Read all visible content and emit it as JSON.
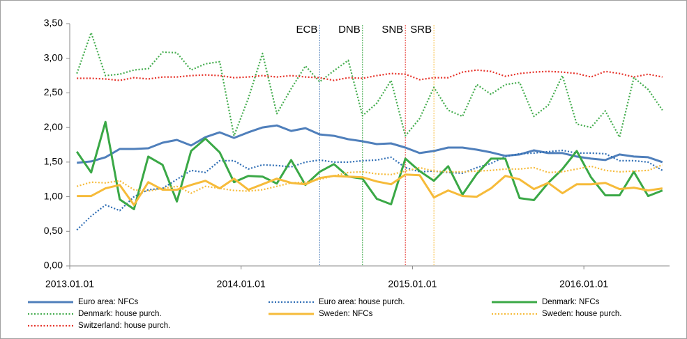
{
  "chart_data": {
    "type": "line",
    "x": [
      "2013.01.01",
      "2013.02.01",
      "2013.03.01",
      "2013.04.01",
      "2013.05.01",
      "2013.06.01",
      "2013.07.01",
      "2013.08.01",
      "2013.09.01",
      "2013.10.01",
      "2013.11.01",
      "2013.12.01",
      "2014.01.01",
      "2014.02.01",
      "2014.03.01",
      "2014.04.01",
      "2014.05.01",
      "2014.06.01",
      "2014.07.01",
      "2014.08.01",
      "2014.09.01",
      "2014.10.01",
      "2014.11.01",
      "2014.12.01",
      "2015.01.01",
      "2015.02.01",
      "2015.03.01",
      "2015.04.01",
      "2015.05.01",
      "2015.06.01",
      "2015.07.01",
      "2015.08.01",
      "2015.09.01",
      "2015.10.01",
      "2015.11.01",
      "2015.12.01",
      "2016.01.01",
      "2016.02.01",
      "2016.03.01",
      "2016.04.01",
      "2016.05.01",
      "2016.06.01"
    ],
    "xticks": [
      "2013.01.01",
      "2014.01.01",
      "2015.01.01",
      "2016.01.01"
    ],
    "ylim": [
      0,
      3.5
    ],
    "yticks": [
      {
        "value": 0,
        "label": "0,00"
      },
      {
        "value": 0.5,
        "label": "0,50"
      },
      {
        "value": 1,
        "label": "1,00"
      },
      {
        "value": 1.5,
        "label": "1,50"
      },
      {
        "value": 2,
        "label": "2,00"
      },
      {
        "value": 2.5,
        "label": "2,50"
      },
      {
        "value": 3,
        "label": "3,00"
      },
      {
        "value": 3.5,
        "label": "3,50"
      }
    ],
    "series": [
      {
        "name": "Euro area: NFCs",
        "color": "#4f7fbb",
        "style": "solid",
        "values": [
          1.49,
          1.51,
          1.57,
          1.69,
          1.69,
          1.7,
          1.78,
          1.82,
          1.74,
          1.86,
          1.93,
          1.85,
          1.93,
          2.0,
          2.03,
          1.95,
          1.99,
          1.9,
          1.88,
          1.83,
          1.8,
          1.76,
          1.77,
          1.71,
          1.63,
          1.66,
          1.71,
          1.71,
          1.68,
          1.64,
          1.59,
          1.61,
          1.67,
          1.63,
          1.63,
          1.58,
          1.55,
          1.53,
          1.61,
          1.58,
          1.57,
          1.5
        ]
      },
      {
        "name": "Euro area: house purch.",
        "color": "#2e6db4",
        "style": "dotted",
        "values": [
          0.52,
          0.72,
          0.88,
          0.8,
          1.0,
          1.1,
          1.12,
          1.25,
          1.38,
          1.35,
          1.52,
          1.52,
          1.4,
          1.46,
          1.45,
          1.43,
          1.5,
          1.53,
          1.5,
          1.5,
          1.52,
          1.53,
          1.57,
          1.42,
          1.36,
          1.37,
          1.35,
          1.34,
          1.42,
          1.48,
          1.58,
          1.62,
          1.63,
          1.65,
          1.67,
          1.63,
          1.63,
          1.62,
          1.52,
          1.52,
          1.5,
          1.38
        ]
      },
      {
        "name": "Denmark: NFCs",
        "color": "#3aa846",
        "style": "solid",
        "values": [
          1.65,
          1.35,
          2.08,
          0.96,
          0.82,
          1.58,
          1.46,
          0.93,
          1.66,
          1.84,
          1.64,
          1.21,
          1.3,
          1.29,
          1.19,
          1.53,
          1.17,
          1.36,
          1.47,
          1.29,
          1.26,
          0.97,
          0.89,
          1.55,
          1.37,
          1.23,
          1.44,
          1.03,
          1.33,
          1.55,
          1.55,
          0.98,
          0.95,
          1.2,
          1.4,
          1.66,
          1.28,
          1.02,
          1.02,
          1.36,
          1.01,
          1.09
        ]
      },
      {
        "name": "Denmark: house purch.",
        "color": "#45ad4f",
        "style": "dotted",
        "values": [
          2.78,
          3.37,
          2.75,
          2.77,
          2.83,
          2.85,
          3.09,
          3.08,
          2.83,
          2.92,
          2.95,
          1.88,
          2.42,
          3.07,
          2.2,
          2.56,
          2.89,
          2.66,
          2.82,
          2.97,
          2.17,
          2.35,
          2.68,
          1.88,
          2.13,
          2.58,
          2.25,
          2.16,
          2.62,
          2.48,
          2.62,
          2.65,
          2.16,
          2.32,
          2.75,
          2.05,
          2.0,
          2.24,
          1.86,
          2.72,
          2.55,
          2.25
        ]
      },
      {
        "name": "Sweden: NFCs",
        "color": "#f6bb3a",
        "style": "solid",
        "values": [
          1.01,
          1.01,
          1.12,
          1.17,
          0.88,
          1.21,
          1.1,
          1.1,
          1.17,
          1.23,
          1.12,
          1.26,
          1.1,
          1.18,
          1.26,
          1.2,
          1.18,
          1.27,
          1.3,
          1.29,
          1.28,
          1.22,
          1.18,
          1.32,
          1.31,
          0.99,
          1.09,
          1.01,
          1.0,
          1.12,
          1.3,
          1.25,
          1.11,
          1.2,
          1.05,
          1.18,
          1.18,
          1.2,
          1.11,
          1.13,
          1.09,
          1.12
        ]
      },
      {
        "name": "Sweden: house purch.",
        "color": "#f6bb3a",
        "style": "dotted",
        "values": [
          1.15,
          1.21,
          1.2,
          1.23,
          1.1,
          1.08,
          1.12,
          1.15,
          1.05,
          1.15,
          1.12,
          1.09,
          1.08,
          1.1,
          1.15,
          1.2,
          1.21,
          1.25,
          1.3,
          1.35,
          1.36,
          1.33,
          1.32,
          1.37,
          1.42,
          1.37,
          1.36,
          1.36,
          1.37,
          1.38,
          1.4,
          1.4,
          1.42,
          1.35,
          1.36,
          1.4,
          1.44,
          1.38,
          1.36,
          1.37,
          1.38,
          1.46
        ]
      },
      {
        "name": "Switzerland: house purch.",
        "color": "#e6332a",
        "style": "dotted",
        "values": [
          2.71,
          2.71,
          2.7,
          2.68,
          2.72,
          2.7,
          2.73,
          2.73,
          2.75,
          2.76,
          2.75,
          2.72,
          2.73,
          2.75,
          2.73,
          2.75,
          2.73,
          2.72,
          2.68,
          2.72,
          2.71,
          2.75,
          2.78,
          2.77,
          2.69,
          2.72,
          2.72,
          2.8,
          2.83,
          2.81,
          2.74,
          2.78,
          2.8,
          2.81,
          2.8,
          2.78,
          2.73,
          2.81,
          2.78,
          2.73,
          2.77,
          2.73
        ]
      }
    ],
    "annotations": [
      {
        "label": "ECB",
        "x": "2014.06.01",
        "color": "#4f7fbb"
      },
      {
        "label": "DNB",
        "x": "2014.09.01",
        "color": "#3aa846"
      },
      {
        "label": "SNB",
        "x": "2014.12.01",
        "color": "#e6332a"
      },
      {
        "label": "SRB",
        "x": "2015.02.01",
        "color": "#f6bb3a"
      }
    ],
    "legend": "bottom",
    "grid": false
  }
}
